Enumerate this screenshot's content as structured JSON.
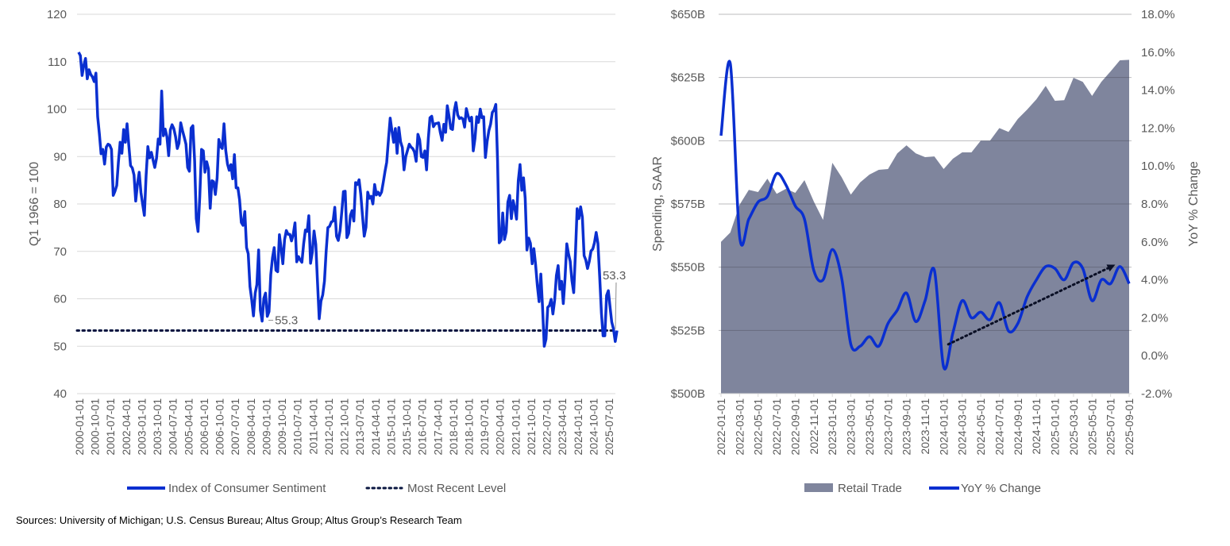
{
  "colors": {
    "sentiment": "#0a2fd0",
    "retail_area": "#7f859d",
    "yoy": "#0a2fd0",
    "reference": "#0a1640",
    "grid": "#d9d9d9"
  },
  "source": "Sources: University of Michigan; U.S. Census Bureau; Altus Group; Altus Group’s Research Team",
  "chart_data": [
    {
      "type": "line",
      "ylabel": "Q1 1966 = 100",
      "ylim": [
        40,
        120
      ],
      "yticks": [
        "40",
        "50",
        "60",
        "70",
        "80",
        "90",
        "100",
        "110",
        "120"
      ],
      "grid": true,
      "legend_position": "bottom",
      "x_start": "2000-01-01",
      "x_frequency": "monthly",
      "xtick_labels": [
        "2000-01-01",
        "2000-10-01",
        "2001-07-01",
        "2002-04-01",
        "2003-01-01",
        "2003-10-01",
        "2004-07-01",
        "2005-04-01",
        "2006-01-01",
        "2006-10-01",
        "2007-07-01",
        "2008-04-01",
        "2009-01-01",
        "2009-10-01",
        "2010-07-01",
        "2011-04-01",
        "2012-01-01",
        "2012-10-01",
        "2013-07-01",
        "2014-04-01",
        "2015-01-01",
        "2015-10-01",
        "2016-07-01",
        "2017-04-01",
        "2018-01-01",
        "2018-10-01",
        "2019-07-01",
        "2020-04-01",
        "2021-01-01",
        "2021-10-01",
        "2022-07-01",
        "2023-04-01",
        "2024-01-01",
        "2024-10-01",
        "2025-07-01"
      ],
      "series": [
        {
          "name": "Index of Consumer Sentiment",
          "values": [
            112.0,
            111.3,
            107.1,
            109.2,
            110.7,
            106.4,
            108.3,
            107.3,
            106.8,
            105.8,
            107.6,
            98.4,
            94.7,
            90.6,
            91.5,
            88.4,
            92.0,
            92.6,
            92.4,
            91.5,
            81.8,
            82.7,
            83.9,
            88.8,
            93.0,
            90.7,
            95.7,
            93.0,
            96.9,
            92.4,
            88.1,
            87.6,
            86.1,
            80.6,
            84.2,
            86.7,
            82.4,
            79.9,
            77.6,
            86.0,
            92.1,
            89.7,
            90.9,
            89.3,
            87.7,
            89.6,
            93.7,
            92.6,
            103.8,
            94.4,
            95.8,
            94.2,
            90.2,
            95.6,
            96.7,
            95.9,
            94.2,
            91.7,
            92.8,
            97.1,
            95.5,
            94.1,
            92.6,
            87.7,
            86.9,
            96.0,
            96.5,
            89.1,
            76.9,
            74.2,
            81.6,
            91.5,
            91.2,
            86.7,
            88.9,
            87.4,
            79.1,
            84.9,
            84.7,
            82.0,
            85.4,
            93.6,
            92.1,
            91.7,
            96.9,
            91.3,
            88.4,
            87.1,
            88.3,
            85.3,
            90.4,
            83.4,
            83.4,
            80.9,
            76.1,
            75.5,
            78.4,
            70.8,
            69.5,
            62.6,
            59.8,
            56.4,
            61.2,
            63.0,
            70.3,
            57.6,
            55.3,
            60.1,
            61.2,
            56.3,
            57.3,
            65.1,
            68.7,
            70.8,
            66.0,
            65.7,
            73.5,
            70.6,
            67.4,
            72.5,
            74.4,
            73.6,
            73.6,
            72.2,
            73.6,
            76.0,
            67.8,
            68.9,
            68.2,
            67.7,
            71.6,
            74.5,
            74.2,
            77.5,
            67.5,
            69.8,
            74.3,
            71.5,
            63.7,
            55.8,
            59.5,
            60.8,
            63.7,
            69.9,
            75.0,
            75.3,
            76.2,
            76.4,
            79.3,
            73.2,
            72.3,
            74.3,
            78.3,
            82.6,
            82.7,
            72.9,
            73.8,
            77.6,
            78.6,
            76.4,
            84.5,
            84.1,
            85.1,
            82.1,
            77.5,
            73.2,
            75.1,
            82.5,
            81.2,
            81.6,
            80.0,
            84.1,
            81.9,
            82.5,
            81.8,
            82.5,
            84.6,
            86.9,
            88.8,
            93.6,
            98.1,
            95.4,
            93.0,
            95.9,
            90.7,
            96.1,
            93.1,
            91.9,
            87.2,
            90.0,
            91.3,
            92.6,
            92.0,
            91.7,
            91.0,
            89.0,
            94.7,
            93.5,
            90.0,
            89.8,
            91.2,
            87.2,
            93.8,
            98.2,
            98.5,
            96.3,
            96.9,
            97.0,
            97.1,
            95.0,
            93.4,
            96.8,
            95.1,
            100.7,
            98.5,
            95.9,
            95.7,
            99.7,
            101.4,
            98.8,
            98.0,
            98.2,
            97.9,
            96.2,
            100.1,
            98.6,
            97.5,
            98.3,
            91.2,
            93.8,
            98.4,
            97.2,
            100.0,
            98.2,
            98.4,
            89.8,
            93.2,
            95.5,
            96.8,
            99.3,
            99.8,
            101.0,
            89.1,
            71.8,
            72.3,
            78.1,
            72.5,
            74.1,
            80.4,
            81.8,
            76.9,
            80.7,
            79.0,
            76.8,
            84.9,
            88.3,
            82.9,
            85.5,
            81.2,
            70.3,
            72.8,
            71.7,
            67.4,
            70.6,
            67.2,
            62.8,
            59.4,
            65.2,
            58.4,
            50.0,
            51.5,
            58.2,
            58.6,
            59.9,
            56.8,
            59.7,
            64.9,
            67.0,
            62.0,
            63.7,
            59.0,
            64.4,
            71.6,
            69.5,
            67.9,
            63.8,
            61.3,
            69.7,
            79.0,
            76.9,
            79.4,
            77.2,
            69.1,
            68.2,
            66.4,
            67.9,
            70.1,
            70.5,
            71.8,
            74.0,
            71.7,
            64.7,
            57.0,
            52.2,
            52.2,
            60.7,
            61.7,
            58.2,
            55.1,
            53.6,
            51.0,
            53.3
          ]
        },
        {
          "name": "Most Recent Level",
          "value": 53.3,
          "style": "dotted"
        }
      ],
      "annotations": [
        {
          "text": "55.3",
          "date": "2008-11-01",
          "value": 55.3
        },
        {
          "text": "53.3",
          "date": "2025-12-01",
          "value": 53.3
        }
      ],
      "legend": [
        "Index of Consumer Sentiment",
        "Most Recent Level"
      ]
    },
    {
      "type": "area+line",
      "ylabel": "Spending, SAAR",
      "y2label": "YoY % Change",
      "ylim": [
        500,
        650
      ],
      "y2lim": [
        -2,
        18
      ],
      "yticks": [
        "$500B",
        "$525B",
        "$550B",
        "$575B",
        "$600B",
        "$625B",
        "$650B"
      ],
      "y2ticks": [
        "-2.0%",
        "0.0%",
        "2.0%",
        "4.0%",
        "6.0%",
        "8.0%",
        "10.0%",
        "12.0%",
        "14.0%",
        "16.0%",
        "18.0%"
      ],
      "grid": true,
      "legend_position": "bottom",
      "x_start": "2022-01-01",
      "x_frequency": "monthly",
      "xtick_labels": [
        "2022-01-01",
        "2022-03-01",
        "2022-05-01",
        "2022-07-01",
        "2022-09-01",
        "2022-11-01",
        "2023-01-01",
        "2023-03-01",
        "2023-05-01",
        "2023-07-01",
        "2023-09-01",
        "2023-11-01",
        "2024-01-01",
        "2024-03-01",
        "2024-05-01",
        "2024-07-01",
        "2024-09-01",
        "2024-11-01",
        "2025-01-01",
        "2025-03-01",
        "2025-05-01",
        "2025-07-01",
        "2025-09-01"
      ],
      "series": [
        {
          "name": "Retail Trade",
          "axis": "left",
          "unit": "$B",
          "values": [
            560,
            563.7,
            574.7,
            580.6,
            579.7,
            585,
            579,
            581,
            579.4,
            584.4,
            576,
            568.7,
            591.3,
            585.6,
            578.7,
            583.5,
            586.6,
            588.5,
            588.8,
            595,
            598.2,
            595,
            593.5,
            593.8,
            588.8,
            592.9,
            595.4,
            595.4,
            600,
            600,
            605,
            603.5,
            608.6,
            612.3,
            616.4,
            621.7,
            615.8,
            616,
            624.9,
            623.3,
            617.7,
            623.3,
            627.4,
            631.8,
            632
          ]
        },
        {
          "name": "YoY % Change",
          "axis": "right",
          "unit": "%",
          "values": [
            11.6,
            15.4,
            6.3,
            7.2,
            8.1,
            8.4,
            9.6,
            9.0,
            7.9,
            7.2,
            4.5,
            4.0,
            5.6,
            4.1,
            0.6,
            0.5,
            1.0,
            0.5,
            1.7,
            2.4,
            3.3,
            1.8,
            2.9,
            4.5,
            -0.6,
            1.2,
            2.9,
            2.0,
            2.3,
            1.9,
            2.8,
            1.3,
            1.7,
            3.1,
            4.0,
            4.7,
            4.6,
            4.0,
            4.9,
            4.6,
            2.9,
            4.0,
            3.8,
            4.7,
            3.8
          ]
        }
      ],
      "trend_arrow": {
        "axis": "right",
        "from": {
          "date": "2024-01-15",
          "value": 0.6
        },
        "to": {
          "date": "2025-07-15",
          "value": 4.8
        },
        "style": "dotted"
      },
      "legend": [
        "Retail Trade",
        "YoY % Change"
      ]
    }
  ]
}
